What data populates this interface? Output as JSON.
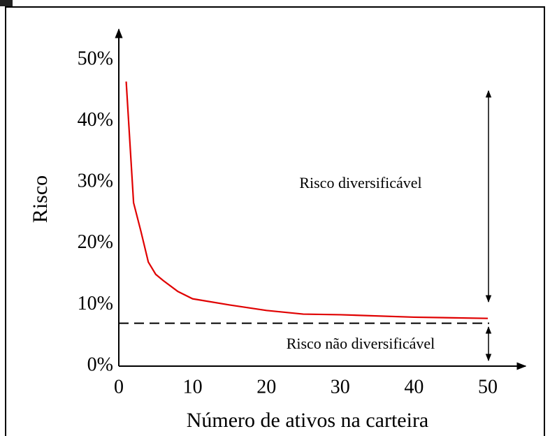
{
  "chart_data": {
    "type": "line",
    "x_label": "Número de ativos na carteira",
    "y_label": "Risco",
    "x": [
      1,
      2,
      3,
      4,
      5,
      6,
      8,
      10,
      15,
      20,
      25,
      30,
      40,
      50
    ],
    "values": [
      46.5,
      26.7,
      22,
      17,
      15,
      14,
      12.2,
      11,
      10,
      9.1,
      8.5,
      8.4,
      8,
      7.8
    ],
    "color": "#e00000",
    "reference_line": 7,
    "annotations": [
      "Risco diversificável",
      "Risco não diversificável"
    ],
    "xlim": [
      0,
      55
    ],
    "ylim": [
      0,
      55
    ],
    "xticks": [
      0,
      10,
      20,
      30,
      40,
      50
    ],
    "yticks": [
      {
        "value": 0,
        "label": "0%"
      },
      {
        "value": 10,
        "label": "10%"
      },
      {
        "value": 20,
        "label": "20%"
      },
      {
        "value": 30,
        "label": "30%"
      },
      {
        "value": 40,
        "label": "40%"
      },
      {
        "value": 50,
        "label": "50%"
      }
    ],
    "grid": false
  }
}
